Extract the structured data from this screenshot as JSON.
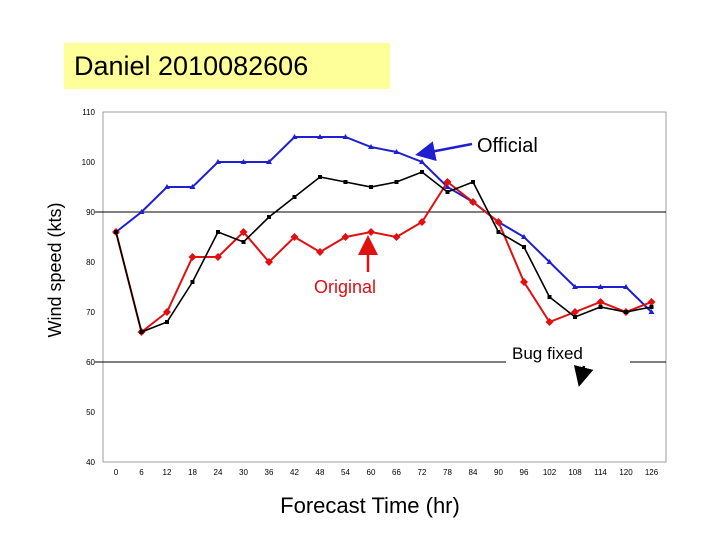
{
  "chart_data": {
    "type": "line",
    "title": "Daniel 2010082606",
    "xlabel": "Forecast Time (hr)",
    "ylabel": "Wind speed (kts)",
    "ylim": [
      40,
      110
    ],
    "yticks": [
      40,
      50,
      60,
      70,
      80,
      90,
      100,
      110
    ],
    "x": [
      0,
      6,
      12,
      18,
      24,
      30,
      36,
      42,
      48,
      54,
      60,
      66,
      72,
      78,
      84,
      90,
      96,
      102,
      108,
      114,
      120,
      126
    ],
    "reference_lines": [
      90,
      60
    ],
    "series": [
      {
        "name": "Official",
        "color": "#1f1fd0",
        "marker": "triangle",
        "values": [
          86,
          90,
          95,
          95,
          100,
          100,
          100,
          105,
          105,
          105,
          103,
          102,
          100,
          95,
          92,
          88,
          85,
          80,
          75,
          75,
          75,
          70
        ]
      },
      {
        "name": "Original",
        "color": "#e01010",
        "marker": "diamond",
        "values": [
          86,
          66,
          70,
          81,
          81,
          86,
          80,
          85,
          82,
          85,
          86,
          85,
          88,
          96,
          92,
          88,
          76,
          68,
          70,
          72,
          70,
          72
        ]
      },
      {
        "name": "Bug fixed",
        "color": "#000000",
        "marker": "square",
        "values": [
          86,
          66,
          68,
          76,
          86,
          84,
          89,
          93,
          97,
          96,
          95,
          96,
          98,
          94,
          96,
          86,
          83,
          73,
          69,
          71,
          70,
          71
        ]
      }
    ]
  }
}
